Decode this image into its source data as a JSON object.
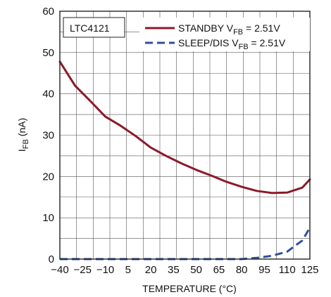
{
  "chart_data": {
    "type": "line",
    "title": "",
    "inset_label": "LTC4121",
    "xlabel": "TEMPERATURE (°C)",
    "ylabel": {
      "main": "I",
      "sub": "FB",
      "suffix": " (nA)"
    },
    "xlim": [
      -40,
      125
    ],
    "ylim": [
      0,
      60
    ],
    "x_ticks": [
      -40,
      -25,
      -10,
      5,
      20,
      35,
      50,
      65,
      80,
      95,
      110,
      125
    ],
    "y_ticks": [
      0,
      10,
      20,
      30,
      40,
      50,
      60
    ],
    "grid": true,
    "legend_position": "top-right",
    "series": [
      {
        "name": {
          "pre": "STANDBY V",
          "sub": "FB",
          "post": " = 2.51V"
        },
        "color": "#8b1a2b",
        "dash": "solid",
        "x": [
          -40,
          -30,
          -20,
          -10,
          0,
          10,
          20,
          30,
          40,
          50,
          60,
          70,
          80,
          90,
          100,
          110,
          120,
          125
        ],
        "y": [
          47.8,
          42,
          38.3,
          34.5,
          32.3,
          29.8,
          27,
          25,
          23.2,
          21.6,
          20.2,
          18.7,
          17.5,
          16.5,
          16,
          16.1,
          17.3,
          19.3
        ]
      },
      {
        "name": {
          "pre": "SLEEP/DIS V",
          "sub": "FB",
          "post": " = 2.51V"
        },
        "color": "#2f4f9a",
        "dash": "dashed",
        "x": [
          -40,
          -20,
          0,
          20,
          40,
          60,
          70,
          80,
          90,
          100,
          110,
          120,
          125
        ],
        "y": [
          0,
          0,
          0,
          0,
          0,
          0,
          0,
          0,
          0.3,
          0.8,
          1.8,
          4.5,
          7.6
        ]
      }
    ]
  }
}
